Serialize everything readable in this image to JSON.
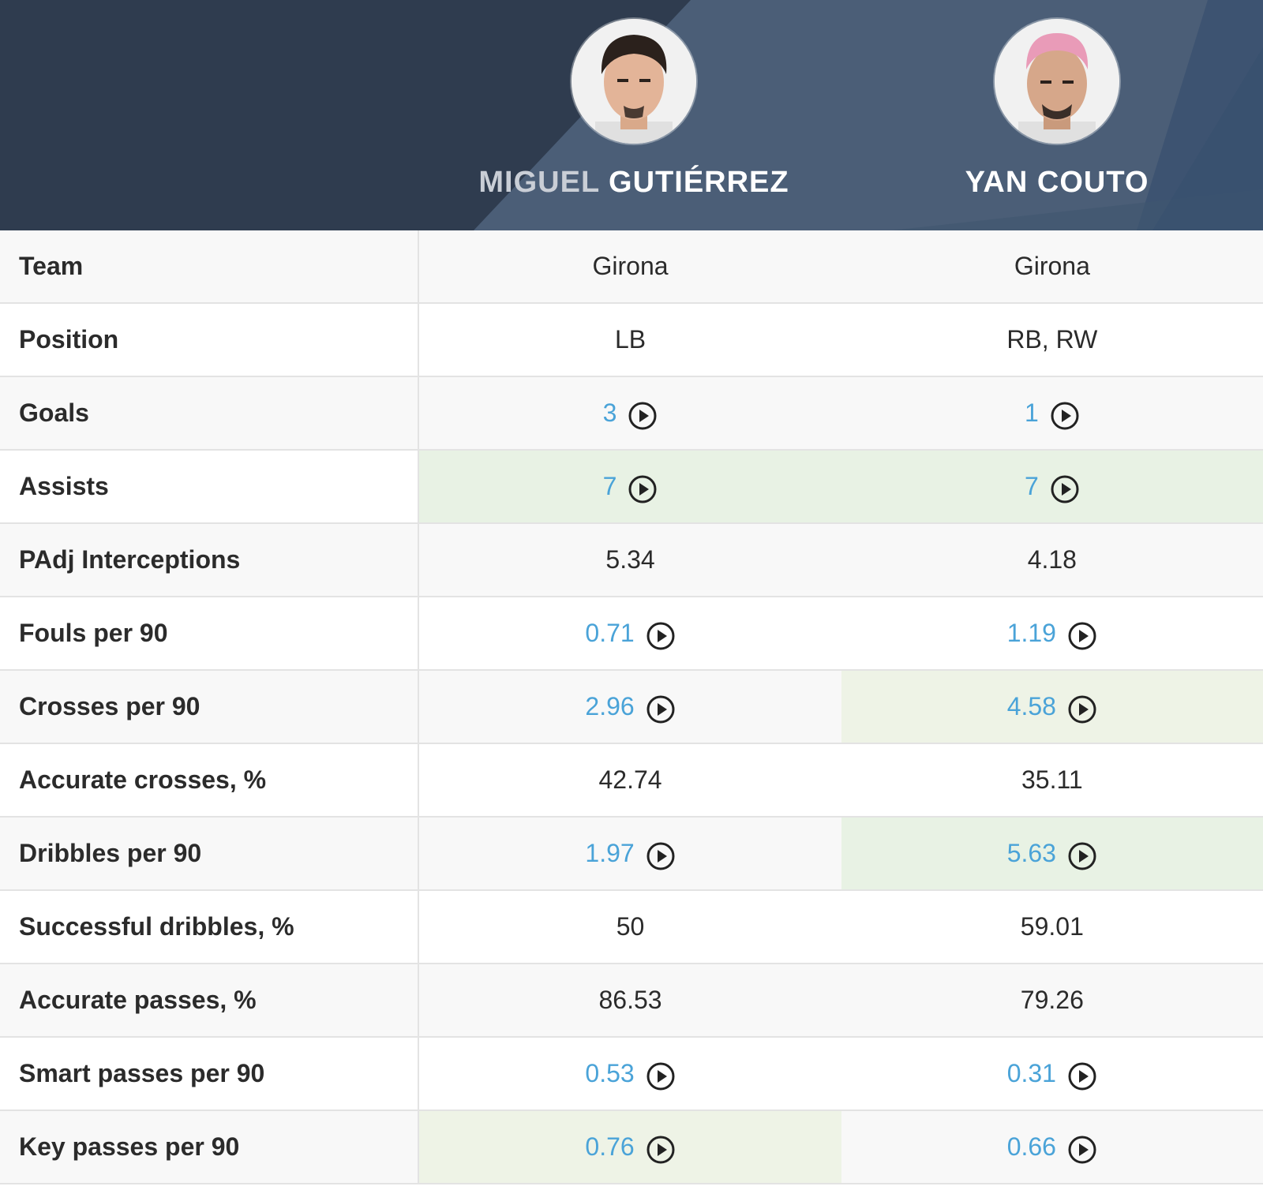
{
  "players": [
    {
      "first": "MIGUEL",
      "last": "GUTIÉRREZ"
    },
    {
      "first": "YAN",
      "last": "COUTO"
    }
  ],
  "rows": [
    {
      "label": "Team",
      "values": [
        {
          "text": "Girona"
        },
        {
          "text": "Girona"
        }
      ]
    },
    {
      "label": "Position",
      "values": [
        {
          "text": "LB"
        },
        {
          "text": "RB, RW"
        }
      ]
    },
    {
      "label": "Goals",
      "values": [
        {
          "text": "3",
          "video": true
        },
        {
          "text": "1",
          "video": true
        }
      ]
    },
    {
      "label": "Assists",
      "values": [
        {
          "text": "7",
          "video": true,
          "best": true
        },
        {
          "text": "7",
          "video": true,
          "best": true
        }
      ]
    },
    {
      "label": "PAdj Interceptions",
      "values": [
        {
          "text": "5.34"
        },
        {
          "text": "4.18"
        }
      ]
    },
    {
      "label": "Fouls per 90",
      "values": [
        {
          "text": "0.71",
          "video": true
        },
        {
          "text": "1.19",
          "video": true
        }
      ]
    },
    {
      "label": "Crosses per 90",
      "values": [
        {
          "text": "2.96",
          "video": true
        },
        {
          "text": "4.58",
          "video": true,
          "best": true
        }
      ]
    },
    {
      "label": "Accurate crosses, %",
      "values": [
        {
          "text": "42.74"
        },
        {
          "text": "35.11"
        }
      ]
    },
    {
      "label": "Dribbles per 90",
      "values": [
        {
          "text": "1.97",
          "video": true
        },
        {
          "text": "5.63",
          "video": true,
          "best": true
        }
      ]
    },
    {
      "label": "Successful dribbles, %",
      "values": [
        {
          "text": "50"
        },
        {
          "text": "59.01"
        }
      ]
    },
    {
      "label": "Accurate passes, %",
      "values": [
        {
          "text": "86.53"
        },
        {
          "text": "79.26"
        }
      ]
    },
    {
      "label": "Smart passes per 90",
      "values": [
        {
          "text": "0.53",
          "video": true
        },
        {
          "text": "0.31",
          "video": true
        }
      ]
    },
    {
      "label": "Key passes per 90",
      "values": [
        {
          "text": "0.76",
          "video": true,
          "best": true
        },
        {
          "text": "0.66",
          "video": true
        }
      ]
    }
  ],
  "icons": {
    "video": "play-circle-icon"
  },
  "colors": {
    "header": "#2f3c4f",
    "link": "#4aa3d8",
    "best_fill": "#e8f2e4"
  }
}
